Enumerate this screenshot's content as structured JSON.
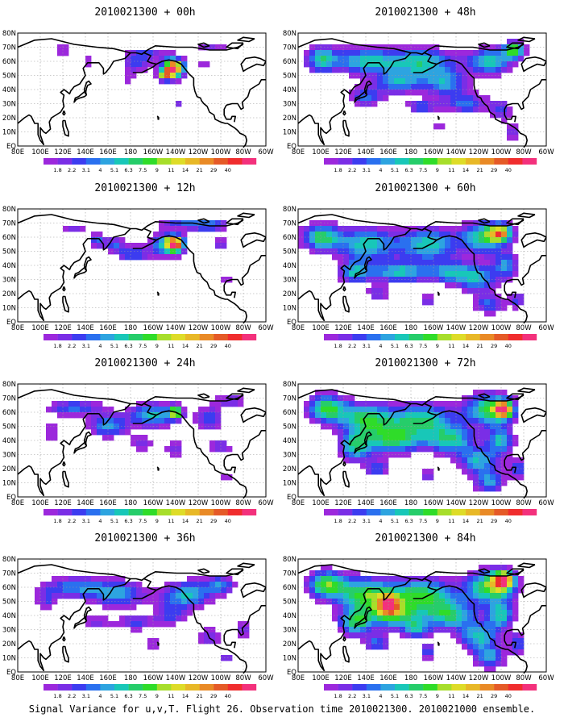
{
  "panels": [
    {
      "title": "2010021300 + 00h",
      "lead": "00h",
      "blobs": [
        [
          -142,
          55,
          10,
          7,
          3.2
        ],
        [
          -150,
          50,
          6,
          4,
          1.8
        ],
        [
          -175,
          58,
          14,
          7,
          0.9
        ],
        [
          178,
          48,
          8,
          4,
          0.6
        ],
        [
          -165,
          65,
          20,
          4,
          0.8
        ],
        [
          142,
          60,
          6,
          4,
          0.6
        ],
        [
          -138,
          30,
          4,
          3,
          0.8
        ],
        [
          -115,
          57,
          5,
          3,
          0.8
        ],
        [
          -100,
          28,
          3,
          3,
          0.6
        ],
        [
          -168,
          40,
          4,
          3,
          0.5
        ],
        [
          -108,
          70,
          20,
          5,
          0.7
        ],
        [
          120,
          68,
          20,
          4,
          0.6
        ],
        [
          -125,
          22,
          3,
          3,
          0.5
        ]
      ]
    },
    {
      "title": "2010021300 + 12h",
      "lead": "12h",
      "blobs": [
        [
          -140,
          55,
          8,
          6,
          2.6
        ],
        [
          -150,
          55,
          14,
          9,
          1.4
        ],
        [
          -178,
          48,
          14,
          6,
          1.1
        ],
        [
          165,
          55,
          10,
          6,
          1.0
        ],
        [
          150,
          58,
          6,
          5,
          1.1
        ],
        [
          -110,
          68,
          20,
          5,
          1.0
        ],
        [
          -100,
          55,
          8,
          6,
          0.8
        ],
        [
          -95,
          30,
          6,
          4,
          0.7
        ],
        [
          -165,
          35,
          5,
          4,
          0.6
        ],
        [
          -135,
          70,
          25,
          4,
          0.8
        ],
        [
          130,
          66,
          15,
          4,
          0.7
        ],
        [
          -125,
          40,
          5,
          4,
          0.6
        ]
      ]
    },
    {
      "title": "2010021300 + 24h",
      "lead": "24h",
      "blobs": [
        [
          -140,
          60,
          6,
          5,
          1.9
        ],
        [
          -160,
          58,
          22,
          9,
          1.5
        ],
        [
          160,
          50,
          18,
          8,
          1.3
        ],
        [
          130,
          63,
          28,
          6,
          1.1
        ],
        [
          -110,
          55,
          14,
          10,
          1.0
        ],
        [
          -100,
          35,
          10,
          6,
          0.9
        ],
        [
          -170,
          38,
          12,
          6,
          0.8
        ],
        [
          -140,
          35,
          10,
          7,
          0.8
        ],
        [
          110,
          45,
          10,
          8,
          0.7
        ],
        [
          -95,
          15,
          6,
          4,
          0.7
        ],
        [
          -120,
          20,
          8,
          4,
          0.6
        ],
        [
          -90,
          68,
          15,
          5,
          0.9
        ]
      ]
    },
    {
      "title": "2010021300 + 36h",
      "lead": "36h",
      "blobs": [
        [
          -130,
          55,
          22,
          10,
          1.5
        ],
        [
          170,
          55,
          25,
          10,
          1.3
        ],
        [
          130,
          60,
          28,
          8,
          1.2
        ],
        [
          -100,
          62,
          14,
          7,
          1.1
        ],
        [
          -175,
          35,
          15,
          6,
          1.0
        ],
        [
          -145,
          40,
          15,
          8,
          0.9
        ],
        [
          150,
          35,
          15,
          5,
          0.8
        ],
        [
          -110,
          25,
          12,
          8,
          0.9
        ],
        [
          -80,
          30,
          8,
          8,
          0.8
        ],
        [
          -95,
          10,
          10,
          5,
          0.7
        ],
        [
          105,
          50,
          10,
          8,
          0.8
        ],
        [
          -160,
          20,
          8,
          5,
          0.6
        ]
      ]
    },
    {
      "title": "2010021300 + 48h",
      "lead": "48h",
      "blobs": [
        [
          -88,
          68,
          10,
          6,
          1.9
        ],
        [
          -110,
          60,
          20,
          10,
          1.6
        ],
        [
          -170,
          60,
          28,
          10,
          1.5
        ],
        [
          140,
          60,
          30,
          10,
          1.5
        ],
        [
          100,
          62,
          15,
          10,
          1.4
        ],
        [
          -150,
          45,
          20,
          10,
          1.3
        ],
        [
          170,
          45,
          20,
          8,
          1.3
        ],
        [
          140,
          35,
          16,
          8,
          1.1
        ],
        [
          -170,
          28,
          15,
          5,
          1.0
        ],
        [
          -130,
          30,
          20,
          8,
          1.1
        ],
        [
          -100,
          25,
          10,
          8,
          0.9
        ],
        [
          -90,
          10,
          8,
          6,
          0.8
        ],
        [
          -155,
          15,
          6,
          5,
          0.6
        ]
      ]
    },
    {
      "title": "2010021300 + 60h",
      "lead": "60h",
      "blobs": [
        [
          -100,
          63,
          10,
          6,
          2.1
        ],
        [
          -115,
          60,
          20,
          12,
          1.7
        ],
        [
          100,
          60,
          18,
          10,
          1.7
        ],
        [
          140,
          55,
          25,
          12,
          1.6
        ],
        [
          -165,
          55,
          28,
          12,
          1.6
        ],
        [
          170,
          35,
          25,
          8,
          1.5
        ],
        [
          130,
          35,
          15,
          8,
          1.4
        ],
        [
          -145,
          35,
          20,
          8,
          1.3
        ],
        [
          -120,
          30,
          18,
          10,
          1.3
        ],
        [
          -95,
          40,
          12,
          10,
          1.2
        ],
        [
          -110,
          12,
          15,
          7,
          1.1
        ],
        [
          150,
          20,
          10,
          5,
          0.9
        ],
        [
          -165,
          15,
          8,
          5,
          0.8
        ],
        [
          -85,
          15,
          8,
          6,
          0.9
        ]
      ]
    },
    {
      "title": "2010021300 + 72h",
      "lead": "72h",
      "blobs": [
        [
          -98,
          62,
          8,
          6,
          2.4
        ],
        [
          -110,
          62,
          22,
          12,
          1.8
        ],
        [
          105,
          63,
          18,
          10,
          1.8
        ],
        [
          140,
          55,
          25,
          12,
          1.7
        ],
        [
          -170,
          55,
          30,
          12,
          1.6
        ],
        [
          165,
          40,
          25,
          10,
          1.6
        ],
        [
          130,
          35,
          15,
          10,
          1.5
        ],
        [
          -145,
          40,
          22,
          10,
          1.5
        ],
        [
          -120,
          25,
          18,
          10,
          1.4
        ],
        [
          -100,
          40,
          12,
          10,
          1.4
        ],
        [
          -110,
          10,
          14,
          8,
          1.2
        ],
        [
          150,
          20,
          12,
          6,
          1.0
        ],
        [
          -165,
          15,
          8,
          6,
          0.9
        ],
        [
          -85,
          20,
          8,
          8,
          1.0
        ]
      ]
    },
    {
      "title": "2010021300 + 84h",
      "lead": "84h",
      "blobs": [
        [
          160,
          48,
          8,
          6,
          2.2
        ],
        [
          -98,
          65,
          10,
          7,
          2.3
        ],
        [
          -110,
          60,
          22,
          12,
          1.9
        ],
        [
          105,
          62,
          18,
          10,
          1.9
        ],
        [
          140,
          55,
          25,
          12,
          1.8
        ],
        [
          -170,
          55,
          30,
          12,
          1.8
        ],
        [
          165,
          40,
          25,
          10,
          1.7
        ],
        [
          130,
          35,
          15,
          10,
          1.6
        ],
        [
          -145,
          40,
          22,
          10,
          1.6
        ],
        [
          -120,
          25,
          18,
          10,
          1.5
        ],
        [
          -100,
          40,
          12,
          10,
          1.5
        ],
        [
          -110,
          10,
          14,
          8,
          1.3
        ],
        [
          150,
          20,
          12,
          6,
          1.1
        ],
        [
          -165,
          15,
          8,
          6,
          1.0
        ],
        [
          -85,
          20,
          8,
          8,
          1.1
        ],
        [
          -175,
          30,
          12,
          6,
          1.2
        ]
      ]
    }
  ],
  "lat_labels": [
    "80N",
    "70N",
    "60N",
    "50N",
    "40N",
    "30N",
    "20N",
    "10N",
    "EQ"
  ],
  "lon_labels": [
    "80E",
    "100E",
    "120E",
    "140E",
    "160E",
    "180",
    "160W",
    "140W",
    "120W",
    "100W",
    "80W",
    "60W"
  ],
  "legend": {
    "values": [
      "1.8",
      "2.2",
      "3.1",
      "4",
      "5.1",
      "6.3",
      "7.5",
      "9",
      "11",
      "14",
      "21",
      "29",
      "40"
    ],
    "colors": [
      "#9c28dc",
      "#7a2ee6",
      "#3c3cf0",
      "#2a70ef",
      "#2da4e0",
      "#18c7b8",
      "#26cd6a",
      "#2fdc29",
      "#a7de2b",
      "#dedc28",
      "#e8b827",
      "#e98a26",
      "#e55a27",
      "#f02d2e",
      "#f3317c"
    ]
  },
  "caption": "Signal Variance for u,v,T. Flight 26. Observation time 2010021300. 2010021000 ensemble."
}
